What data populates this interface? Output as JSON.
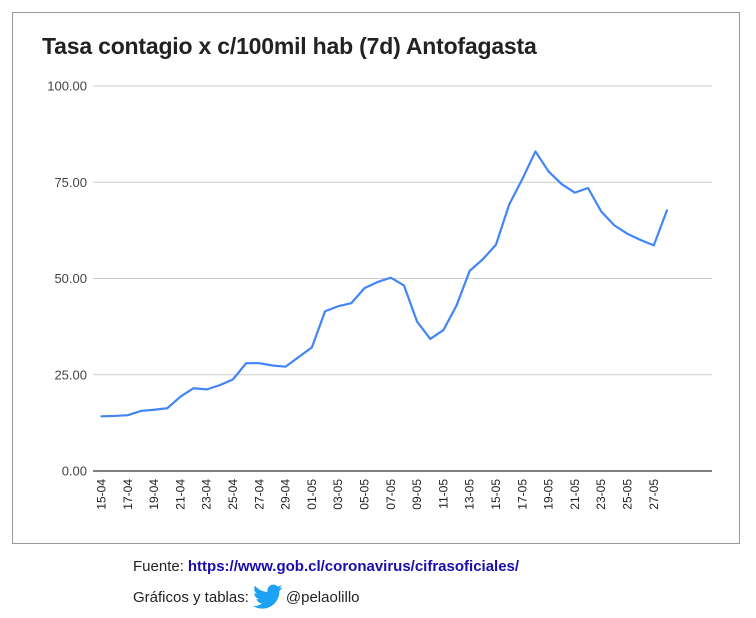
{
  "chart_data": {
    "type": "line",
    "title": "Tasa contagio x c/100mil hab (7d) Antofagasta",
    "xlabel": "",
    "ylabel": "",
    "ylim": [
      0,
      100
    ],
    "yticks": [
      "0.00",
      "25.00",
      "50.00",
      "75.00",
      "100.00"
    ],
    "xtick_labels": [
      "15-04",
      "17-04",
      "19-04",
      "21-04",
      "23-04",
      "25-04",
      "27-04",
      "29-04",
      "01-05",
      "03-05",
      "05-05",
      "07-05",
      "09-05",
      "11-05",
      "13-05",
      "15-05",
      "17-05",
      "19-05",
      "21-05",
      "23-05",
      "25-05",
      "27-05"
    ],
    "grid": true,
    "line_color": "#4285f4",
    "series": [
      {
        "values": [
          14.2,
          14.3,
          14.5,
          15.6,
          15.9,
          16.3,
          19.3,
          21.5,
          21.2,
          22.3,
          23.8,
          28.0,
          28.0,
          27.4,
          27.1,
          29.6,
          32.1,
          41.5,
          42.8,
          43.6,
          47.5,
          49.1,
          50.2,
          48.2,
          38.8,
          34.3,
          36.6,
          43.0,
          52.0,
          55.0,
          58.8,
          69.2,
          75.8,
          83.0,
          77.8,
          74.5,
          72.3,
          73.5,
          67.4,
          63.8,
          61.6,
          60.0,
          58.6,
          67.7
        ]
      }
    ]
  },
  "footer": {
    "source_label": "Fuente:",
    "source_url": "https://www.gob.cl/coronavirus/cifrasoficiales/",
    "credit_label": "Gráficos y tablas:",
    "credit_icon": "twitter-bird-icon",
    "credit_handle": "@pelaolillo",
    "twitter_color": "#1da1f2"
  }
}
